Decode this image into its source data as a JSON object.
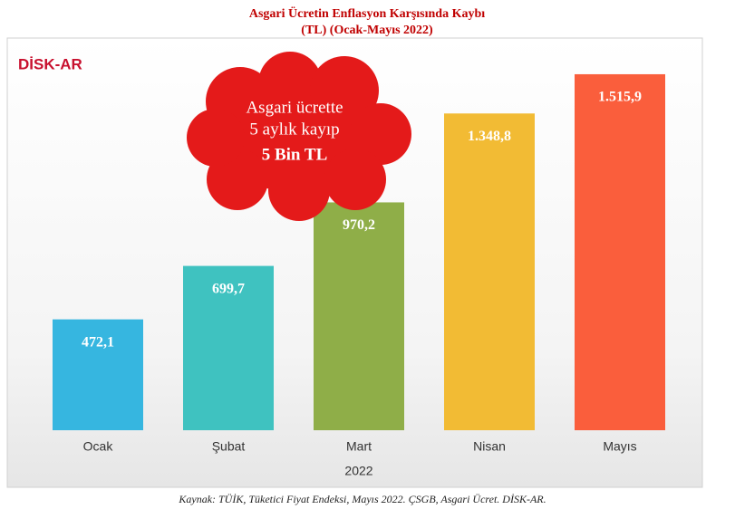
{
  "chart_data": {
    "type": "bar",
    "title": "Asgari Ücretin Enflasyon Karşısında Kaybı",
    "subtitle": "(TL) (Ocak-Mayıs 2022)",
    "categories": [
      "Ocak",
      "Şubat",
      "Mart",
      "Nisan",
      "Mayıs"
    ],
    "values": [
      472.1,
      699.7,
      970.2,
      1348.8,
      1515.9
    ],
    "value_labels": [
      "472,1",
      "699,7",
      "970,2",
      "1.348,8",
      "1.515,9"
    ],
    "colors": [
      "#36b6e0",
      "#3fc2c0",
      "#8fae48",
      "#f2bb34",
      "#fa5e3c"
    ],
    "ylim": [
      0,
      1670
    ],
    "xlabel": "2022",
    "annotation": [
      "Asgari ücrette",
      "5 aylık kayıp",
      "5 Bin TL"
    ],
    "logo": "DİSK-AR",
    "source": "Kaynak: TÜİK, Tüketici Fiyat Endeksi, Mayıs 2022. ÇSGB, Asgari Ücret. DİSK-AR."
  }
}
